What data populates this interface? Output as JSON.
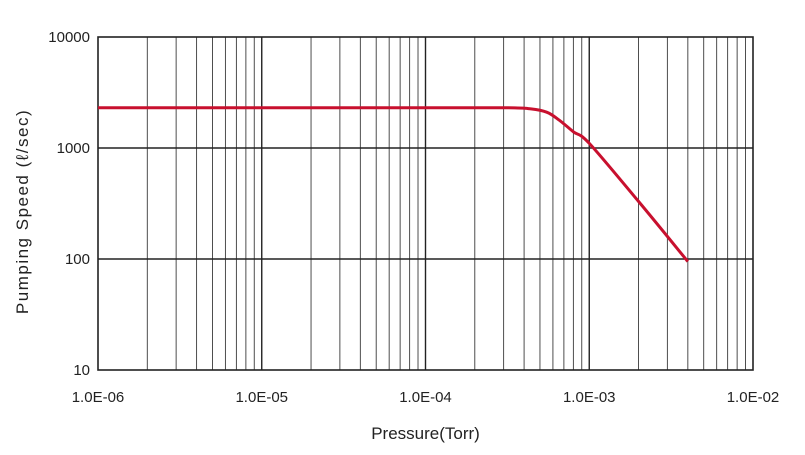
{
  "chart_data": {
    "type": "line",
    "xlabel": "Pressure(Torr)",
    "ylabel": "Pumping Speed (ℓ/sec)",
    "x_scale": "log",
    "y_scale": "log",
    "xlim": [
      1e-06,
      0.01
    ],
    "ylim": [
      10,
      10000
    ],
    "x_tick_values": [
      1e-06,
      1e-05,
      0.0001,
      0.001,
      0.01
    ],
    "x_tick_labels": [
      "1.0E-06",
      "1.0E-05",
      "1.0E-04",
      "1.0E-03",
      "1.0E-02"
    ],
    "y_tick_values": [
      10,
      100,
      1000,
      10000
    ],
    "y_tick_labels": [
      "10",
      "100",
      "1000",
      "10000"
    ],
    "grid": "on",
    "line_color": "#c8102e",
    "series": [
      {
        "x": [
          1e-06,
          1e-05,
          0.0001,
          0.00032,
          0.00044,
          0.00055,
          0.00065,
          0.0008,
          0.001,
          0.002,
          0.004
        ],
        "y": [
          2300,
          2300,
          2300,
          2300,
          2250,
          2100,
          1800,
          1400,
          1100,
          330,
          95
        ]
      }
    ]
  }
}
